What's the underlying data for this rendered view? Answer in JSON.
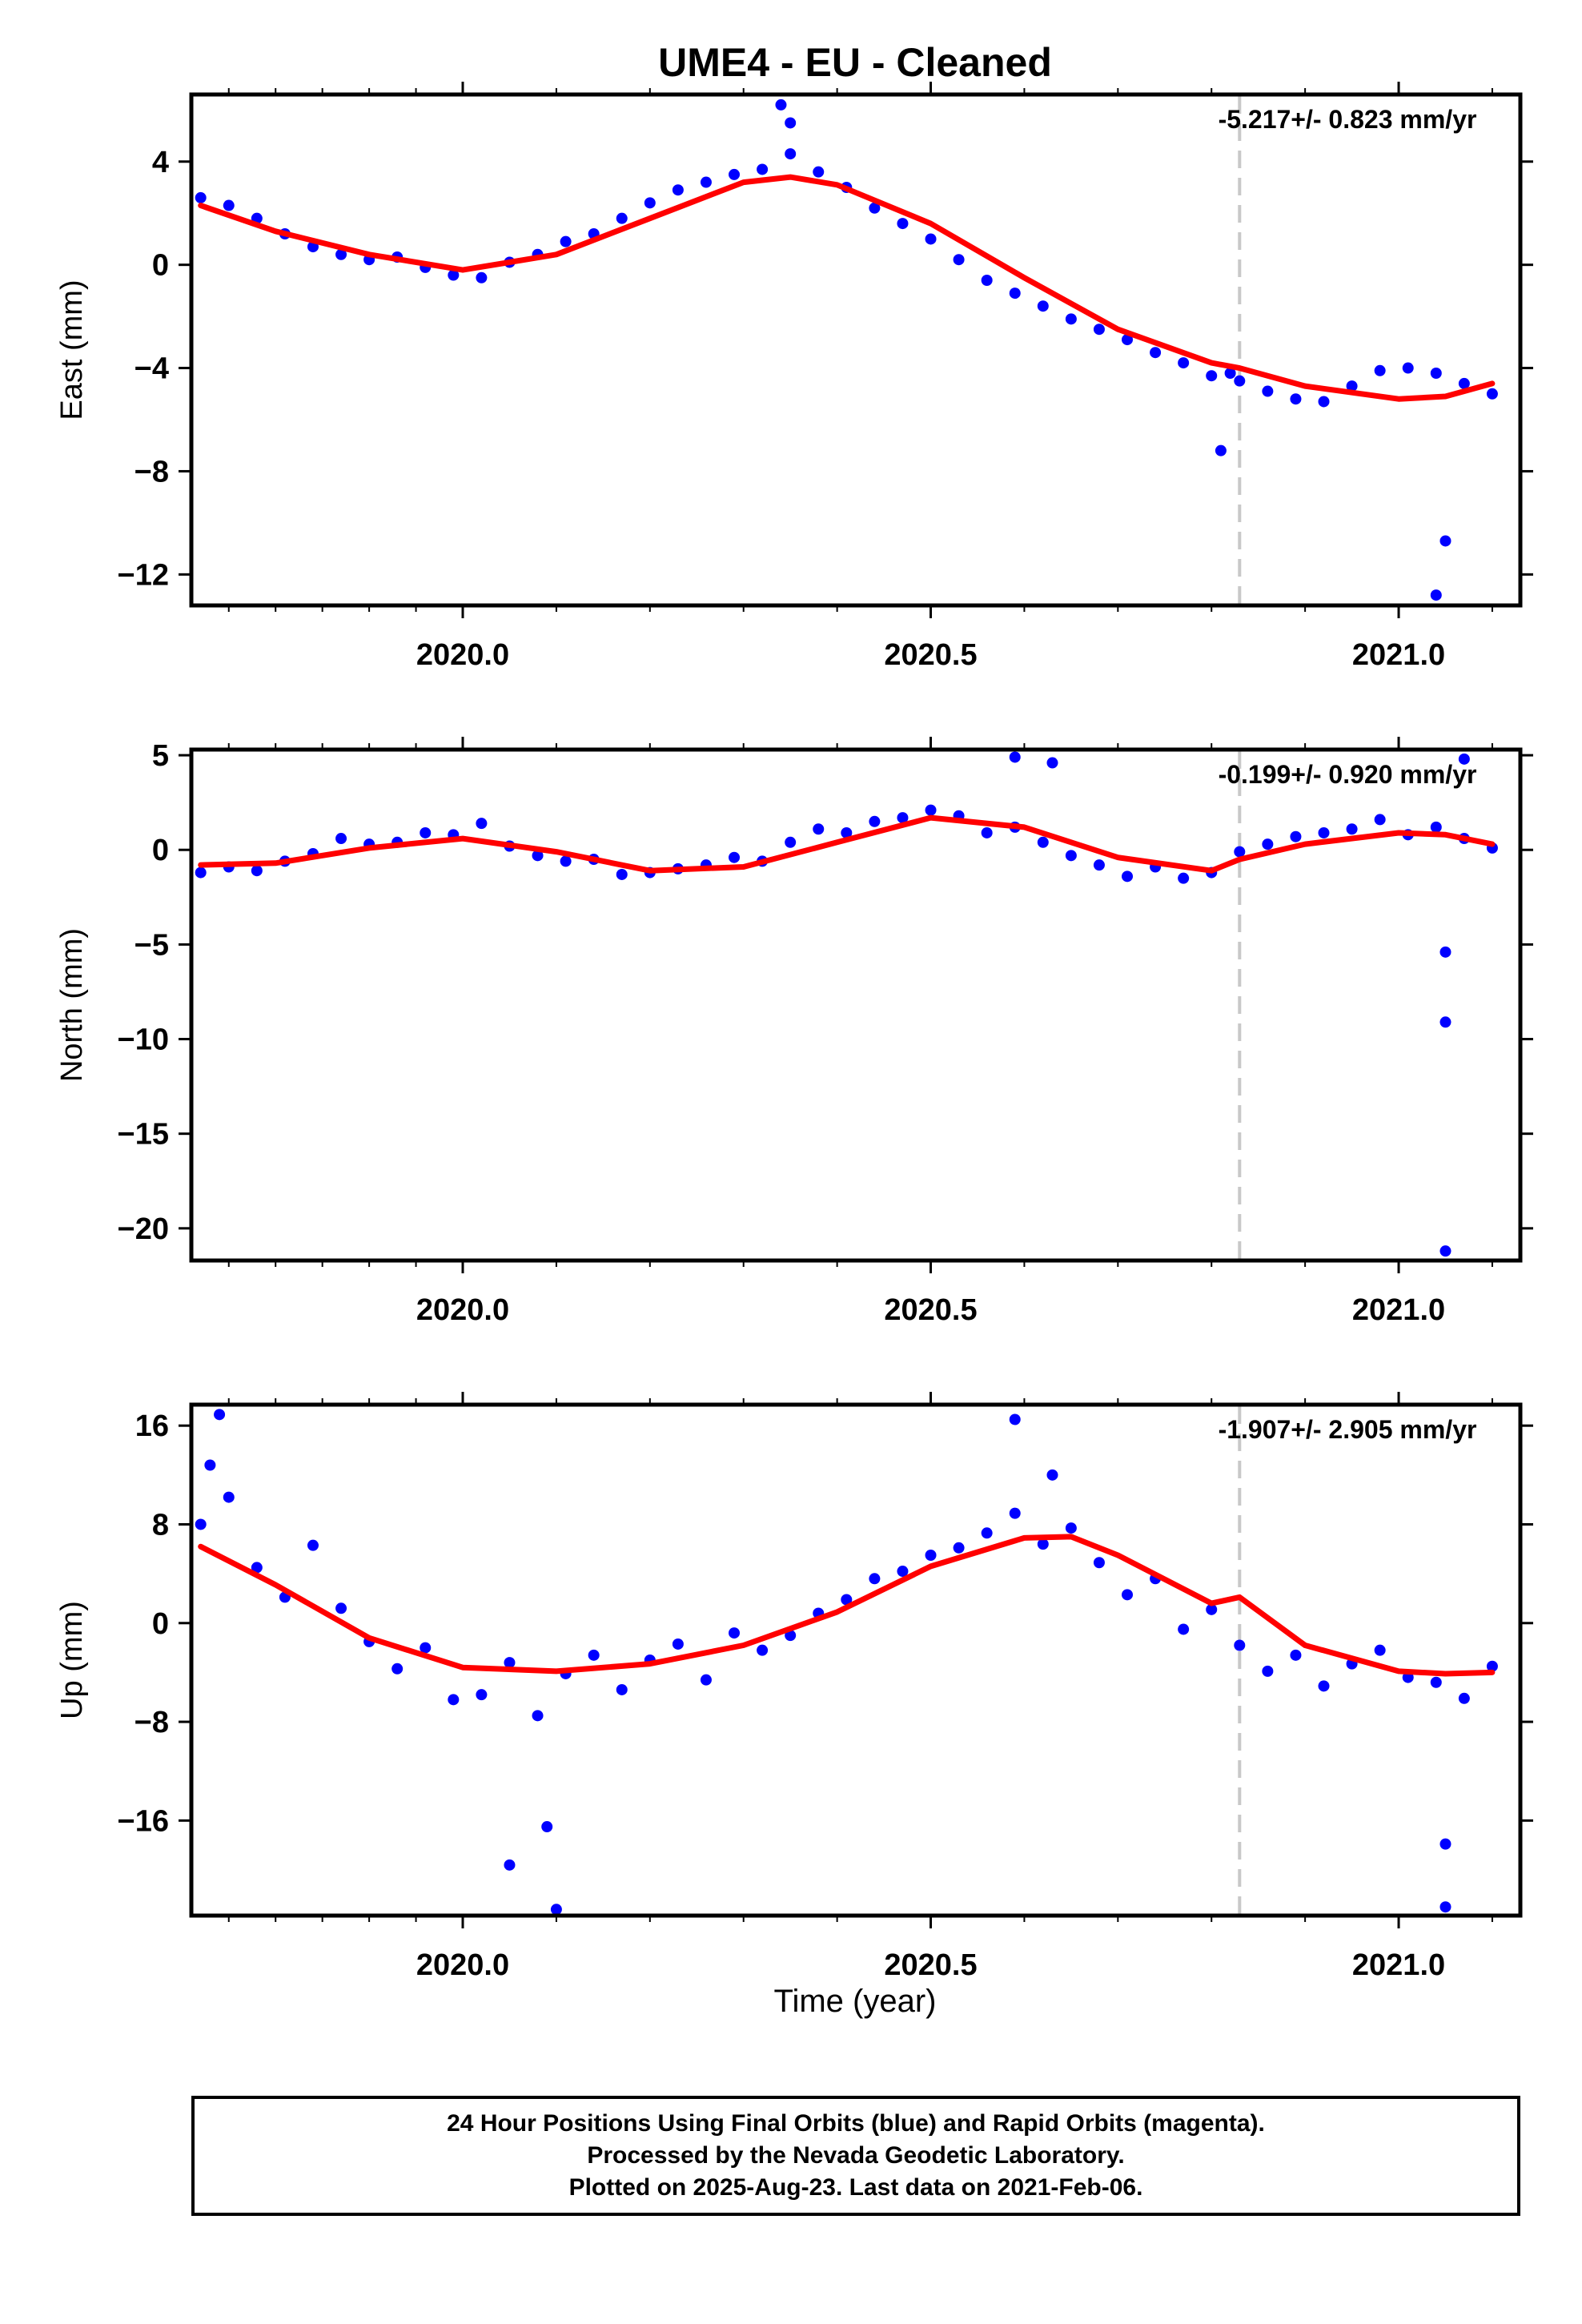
{
  "title": "UME4  - EU - Cleaned",
  "colors": {
    "data": "#0000ff",
    "fit": "#ff0000",
    "marker_line": "#c8c8c8",
    "frame": "#000000"
  },
  "xaxis": {
    "label": "Time (year)",
    "range": [
      2019.71,
      2021.13
    ],
    "ticks": [
      2020.0,
      2020.5,
      2021.0
    ],
    "tick_labels": [
      "2020.0",
      "2020.5",
      "2021.0"
    ],
    "marker_epoch": 2020.83
  },
  "chart_data": [
    {
      "type": "scatter",
      "component": "east",
      "ylabel": "East (mm)",
      "ylim": [
        -13.2,
        6.6
      ],
      "yticks": [
        4,
        0,
        -4,
        -8,
        -12
      ],
      "ytick_labels": [
        "4",
        "0",
        "−4",
        "−8",
        "−12"
      ],
      "velocity_text": "-5.217+/- 0.823 mm/yr",
      "series": [
        {
          "kind": "points",
          "x": [
            2019.72,
            2019.75,
            2019.78,
            2019.81,
            2019.84,
            2019.87,
            2019.9,
            2019.93,
            2019.96,
            2019.99,
            2020.02,
            2020.05,
            2020.08,
            2020.11,
            2020.14,
            2020.17,
            2020.2,
            2020.23,
            2020.26,
            2020.29,
            2020.32,
            2020.35,
            2020.38,
            2020.41,
            2020.44,
            2020.47,
            2020.5,
            2020.53,
            2020.56,
            2020.59,
            2020.62,
            2020.65,
            2020.68,
            2020.71,
            2020.74,
            2020.77,
            2020.8,
            2020.83,
            2020.86,
            2020.89,
            2020.92,
            2020.95,
            2020.98,
            2021.01,
            2021.04,
            2021.07,
            2021.1,
            2020.34,
            2020.35,
            2020.81,
            2021.05,
            2021.04,
            2020.82
          ],
          "y": [
            2.6,
            2.3,
            1.8,
            1.2,
            0.7,
            0.4,
            0.2,
            0.3,
            -0.1,
            -0.4,
            -0.5,
            0.1,
            0.4,
            0.9,
            1.2,
            1.8,
            2.4,
            2.9,
            3.2,
            3.5,
            3.7,
            4.3,
            3.6,
            3.0,
            2.2,
            1.6,
            1.0,
            0.2,
            -0.6,
            -1.1,
            -1.6,
            -2.1,
            -2.5,
            -2.9,
            -3.4,
            -3.8,
            -4.3,
            -4.5,
            -4.9,
            -5.2,
            -5.3,
            -4.7,
            -4.1,
            -4.0,
            -4.2,
            -4.6,
            -5.0,
            6.2,
            5.5,
            -7.2,
            -10.7,
            -12.8,
            -4.2
          ]
        },
        {
          "kind": "fit",
          "x": [
            2019.72,
            2019.8,
            2019.9,
            2020.0,
            2020.1,
            2020.2,
            2020.3,
            2020.35,
            2020.4,
            2020.5,
            2020.6,
            2020.7,
            2020.8,
            2020.83,
            2020.9,
            2021.0,
            2021.05,
            2021.1
          ],
          "y": [
            2.3,
            1.3,
            0.4,
            -0.2,
            0.4,
            1.8,
            3.2,
            3.4,
            3.1,
            1.6,
            -0.5,
            -2.5,
            -3.8,
            -4.0,
            -4.7,
            -5.2,
            -5.1,
            -4.6
          ]
        }
      ]
    },
    {
      "type": "scatter",
      "component": "north",
      "ylabel": "North (mm)",
      "ylim": [
        -21.7,
        5.3
      ],
      "yticks": [
        5,
        0,
        -5,
        -10,
        -15,
        -20
      ],
      "ytick_labels": [
        "5",
        "0",
        "−5",
        "−10",
        "−15",
        "−20"
      ],
      "velocity_text": "-0.199+/- 0.920 mm/yr",
      "series": [
        {
          "kind": "points",
          "x": [
            2019.72,
            2019.75,
            2019.78,
            2019.81,
            2019.84,
            2019.87,
            2019.9,
            2019.93,
            2019.96,
            2019.99,
            2020.02,
            2020.05,
            2020.08,
            2020.11,
            2020.14,
            2020.17,
            2020.2,
            2020.23,
            2020.26,
            2020.29,
            2020.32,
            2020.35,
            2020.38,
            2020.41,
            2020.44,
            2020.47,
            2020.5,
            2020.53,
            2020.56,
            2020.59,
            2020.62,
            2020.65,
            2020.68,
            2020.71,
            2020.74,
            2020.77,
            2020.8,
            2020.83,
            2020.86,
            2020.89,
            2020.92,
            2020.95,
            2020.98,
            2021.01,
            2021.04,
            2021.07,
            2021.1,
            2020.59,
            2020.63,
            2021.07,
            2021.05,
            2021.05,
            2021.05
          ],
          "y": [
            -1.2,
            -0.9,
            -1.1,
            -0.6,
            -0.2,
            0.6,
            0.3,
            0.4,
            0.9,
            0.8,
            1.4,
            0.2,
            -0.3,
            -0.6,
            -0.5,
            -1.3,
            -1.2,
            -1.0,
            -0.8,
            -0.4,
            -0.6,
            0.4,
            1.1,
            0.9,
            1.5,
            1.7,
            2.1,
            1.8,
            0.9,
            1.2,
            0.4,
            -0.3,
            -0.8,
            -1.4,
            -0.9,
            -1.5,
            -1.2,
            -0.1,
            0.3,
            0.7,
            0.9,
            1.1,
            1.6,
            0.8,
            1.2,
            0.6,
            0.1,
            4.9,
            4.6,
            4.8,
            -5.4,
            -9.1,
            -21.2
          ]
        },
        {
          "kind": "fit",
          "x": [
            2019.72,
            2019.8,
            2019.9,
            2020.0,
            2020.1,
            2020.2,
            2020.3,
            2020.4,
            2020.5,
            2020.6,
            2020.7,
            2020.8,
            2020.83,
            2020.9,
            2021.0,
            2021.05,
            2021.1
          ],
          "y": [
            -0.8,
            -0.7,
            0.1,
            0.6,
            -0.1,
            -1.1,
            -0.9,
            0.4,
            1.7,
            1.2,
            -0.4,
            -1.1,
            -0.5,
            0.3,
            0.9,
            0.8,
            0.3
          ]
        }
      ]
    },
    {
      "type": "scatter",
      "component": "up",
      "ylabel": "Up (mm)",
      "ylim": [
        -23.7,
        17.7
      ],
      "yticks": [
        16,
        8,
        0,
        -8,
        -16
      ],
      "ytick_labels": [
        "16",
        "8",
        "0",
        "−8",
        "−16"
      ],
      "velocity_text": "-1.907+/- 2.905 mm/yr",
      "series": [
        {
          "kind": "points",
          "x": [
            2019.72,
            2019.75,
            2019.78,
            2019.81,
            2019.84,
            2019.87,
            2019.9,
            2019.93,
            2019.96,
            2019.99,
            2020.02,
            2020.05,
            2020.08,
            2020.11,
            2020.14,
            2020.17,
            2020.2,
            2020.23,
            2020.26,
            2020.29,
            2020.32,
            2020.35,
            2020.38,
            2020.41,
            2020.44,
            2020.47,
            2020.5,
            2020.53,
            2020.56,
            2020.59,
            2020.62,
            2020.65,
            2020.68,
            2020.71,
            2020.74,
            2020.77,
            2020.8,
            2020.83,
            2020.86,
            2020.89,
            2020.92,
            2020.95,
            2020.98,
            2021.01,
            2021.04,
            2021.07,
            2021.1,
            2019.74,
            2019.73,
            2020.05,
            2020.1,
            2020.09,
            2020.59,
            2020.63,
            2021.05,
            2021.05
          ],
          "y": [
            8.0,
            10.2,
            4.5,
            2.1,
            6.3,
            1.2,
            -1.5,
            -3.7,
            -2.0,
            -6.2,
            -5.8,
            -3.2,
            -7.5,
            -4.1,
            -2.6,
            -5.4,
            -3.0,
            -1.7,
            -4.6,
            -0.8,
            -2.2,
            -1.0,
            0.8,
            1.9,
            3.6,
            4.2,
            5.5,
            6.1,
            7.3,
            8.9,
            6.4,
            7.7,
            4.9,
            2.3,
            3.6,
            -0.5,
            1.1,
            -1.8,
            -3.9,
            -2.6,
            -5.1,
            -3.3,
            -2.2,
            -4.4,
            -4.8,
            -6.1,
            -3.5,
            16.9,
            12.8,
            -19.6,
            -23.2,
            -16.5,
            16.5,
            12.0,
            -17.9,
            -23.0
          ]
        },
        {
          "kind": "fit",
          "x": [
            2019.72,
            2019.8,
            2019.9,
            2020.0,
            2020.1,
            2020.2,
            2020.3,
            2020.4,
            2020.5,
            2020.6,
            2020.65,
            2020.7,
            2020.8,
            2020.83,
            2020.9,
            2021.0,
            2021.05,
            2021.1
          ],
          "y": [
            6.2,
            3.1,
            -1.2,
            -3.6,
            -3.9,
            -3.3,
            -1.8,
            0.9,
            4.6,
            6.9,
            7.0,
            5.5,
            1.6,
            2.1,
            -1.8,
            -3.9,
            -4.1,
            -4.0
          ]
        }
      ]
    }
  ],
  "caption": {
    "line1": "24 Hour Positions Using Final Orbits (blue) and Rapid Orbits (magenta).",
    "line2": "Processed by the Nevada Geodetic Laboratory.",
    "line3": "Plotted on 2025-Aug-23. Last data on 2021-Feb-06."
  }
}
